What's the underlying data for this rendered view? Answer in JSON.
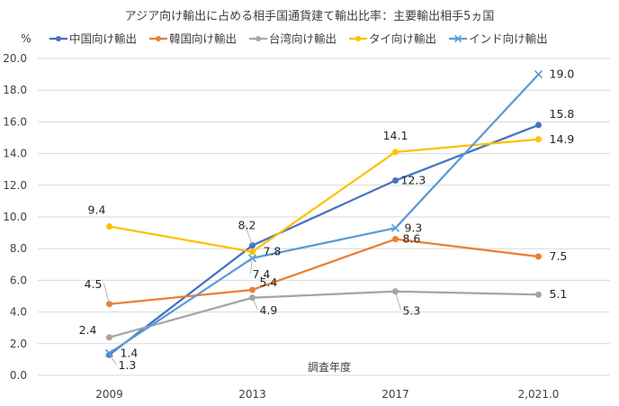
{
  "chart_data": {
    "type": "line",
    "title": "アジア向け輸出に占める相手国通貨建て輸出比率：主要輸出相手5ヵ国",
    "ylabel": "%",
    "xlabel": "調査年度",
    "categories": [
      "2009",
      "2013",
      "2017",
      "2,021.0"
    ],
    "ylim": [
      0,
      20
    ],
    "yticks": [
      "0.0",
      "2.0",
      "4.0",
      "6.0",
      "8.0",
      "10.0",
      "12.0",
      "14.0",
      "16.0",
      "18.0",
      "20.0"
    ],
    "grid": true,
    "legend_position": "top",
    "series": [
      {
        "name": "中国向け輸出",
        "color": "#4472C4",
        "marker": "circle",
        "values": [
          1.3,
          8.2,
          12.3,
          15.8
        ],
        "labels": [
          "1.3",
          "8.2",
          "12.3",
          "15.8"
        ]
      },
      {
        "name": "韓国向け輸出",
        "color": "#ED7D31",
        "marker": "circle",
        "values": [
          4.5,
          5.4,
          8.6,
          7.5
        ],
        "labels": [
          "4.5",
          "5.4",
          "8.6",
          "7.5"
        ]
      },
      {
        "name": "台湾向け輸出",
        "color": "#A5A5A5",
        "marker": "circle",
        "values": [
          2.4,
          4.9,
          5.3,
          5.1
        ],
        "labels": [
          "2.4",
          "4.9",
          "5.3",
          "5.1"
        ]
      },
      {
        "name": "タイ向け輸出",
        "color": "#FFC000",
        "marker": "circle",
        "values": [
          9.4,
          7.8,
          14.1,
          14.9
        ],
        "labels": [
          "9.4",
          "7.8",
          "14.1",
          "14.9"
        ]
      },
      {
        "name": "インド向け輸出",
        "color": "#5B9BD5",
        "marker": "x",
        "values": [
          1.4,
          7.4,
          9.3,
          19.0
        ],
        "labels": [
          "1.4",
          "7.4",
          "9.3",
          "19.0"
        ]
      }
    ]
  }
}
